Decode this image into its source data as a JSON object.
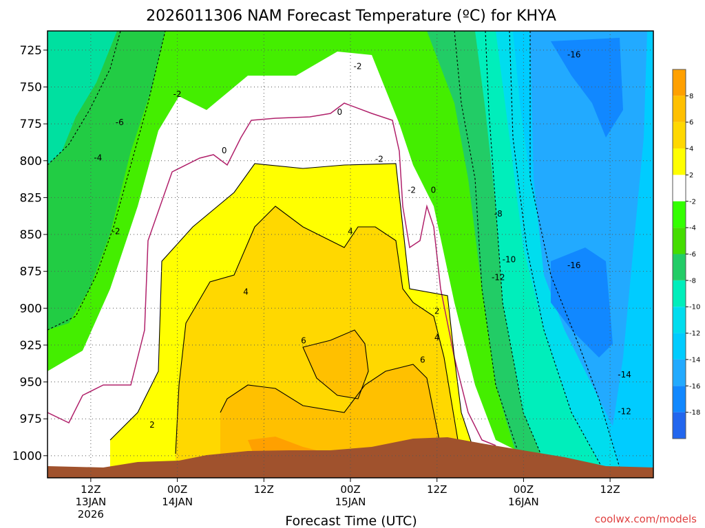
{
  "chart_data": {
    "type": "heatmap",
    "title": "2026011306 NAM Forecast Temperature (ºC) for KHYA",
    "xlabel": "Forecast Time (UTC)",
    "ylabel": "",
    "credit": "coolwx.com/models",
    "y_ticks": [
      "725",
      "750",
      "775",
      "800",
      "825",
      "850",
      "875",
      "900",
      "925",
      "950",
      "975",
      "1000"
    ],
    "y_range": [
      712,
      1015
    ],
    "x_range_hours": [
      6,
      90
    ],
    "x_ticks": [
      {
        "hour": 12,
        "lines": [
          "12Z",
          "13JAN",
          "2026"
        ]
      },
      {
        "hour": 24,
        "lines": [
          "00Z",
          "14JAN"
        ]
      },
      {
        "hour": 36,
        "lines": [
          "12Z"
        ]
      },
      {
        "hour": 48,
        "lines": [
          "00Z",
          "15JAN"
        ]
      },
      {
        "hour": 60,
        "lines": [
          "12Z"
        ]
      },
      {
        "hour": 72,
        "lines": [
          "00Z",
          "16JAN"
        ]
      },
      {
        "hour": 84,
        "lines": [
          "12Z"
        ]
      }
    ],
    "colorbar": {
      "labels": [
        "8",
        "6",
        "4",
        "2",
        "-2",
        "-4",
        "-6",
        "-8",
        "-10",
        "-12",
        "-14",
        "-16",
        "-18"
      ],
      "colors": [
        "#ffa000",
        "#ffc000",
        "#ffd800",
        "#ffff00",
        "#ffffff",
        "#33ff00",
        "#44dd00",
        "#22cc66",
        "#00eebb",
        "#00ddee",
        "#00ccff",
        "#22aaff",
        "#1188ff",
        "#2266ee"
      ]
    },
    "contour_labels": [
      {
        "text": "-16",
        "hour": 79,
        "p": 728
      },
      {
        "text": "-2",
        "hour": 49,
        "p": 736
      },
      {
        "text": "-2",
        "hour": 24,
        "p": 755
      },
      {
        "text": "0",
        "hour": 46.5,
        "p": 767
      },
      {
        "text": "-6",
        "hour": 16,
        "p": 774
      },
      {
        "text": "-4",
        "hour": 13,
        "p": 798
      },
      {
        "text": "0",
        "hour": 30.5,
        "p": 793
      },
      {
        "text": "-2",
        "hour": 52,
        "p": 799
      },
      {
        "text": "-2",
        "hour": 56.5,
        "p": 820
      },
      {
        "text": "0",
        "hour": 59.5,
        "p": 820
      },
      {
        "text": "-8",
        "hour": 68.5,
        "p": 836
      },
      {
        "text": "-2",
        "hour": 15.5,
        "p": 848
      },
      {
        "text": "4",
        "hour": 48,
        "p": 848
      },
      {
        "text": "-10",
        "hour": 70,
        "p": 867
      },
      {
        "text": "-16",
        "hour": 79,
        "p": 871
      },
      {
        "text": "-12",
        "hour": 68.5,
        "p": 879
      },
      {
        "text": "4",
        "hour": 33.5,
        "p": 889
      },
      {
        "text": "2",
        "hour": 60,
        "p": 902
      },
      {
        "text": "6",
        "hour": 41.5,
        "p": 922
      },
      {
        "text": "4",
        "hour": 60,
        "p": 920
      },
      {
        "text": "6",
        "hour": 58,
        "p": 935
      },
      {
        "text": "-14",
        "hour": 86,
        "p": 945
      },
      {
        "text": "2",
        "hour": 20.5,
        "p": 979
      },
      {
        "text": "-12",
        "hour": 86,
        "p": 970
      }
    ]
  }
}
